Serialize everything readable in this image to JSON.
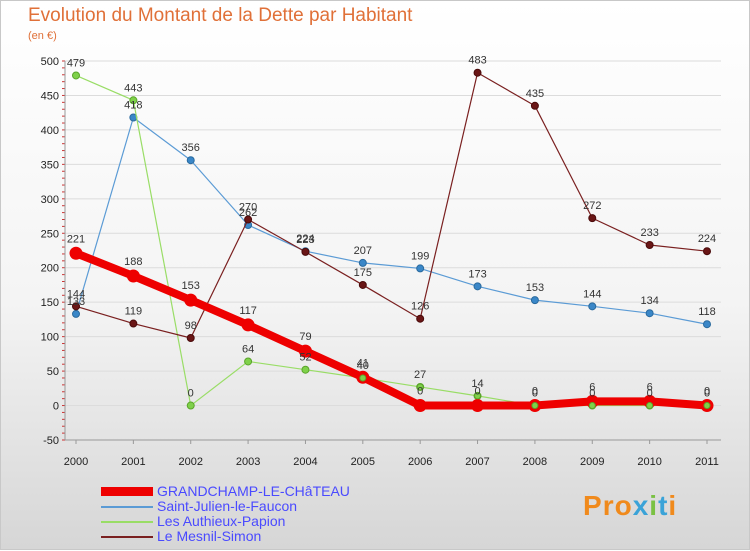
{
  "title": "Evolution du Montant de la Dette par Habitant",
  "subtitle": "(en €)",
  "logo": {
    "text": "Proxiti",
    "colors": [
      "#f08a1c",
      "#f08a1c",
      "#f08a1c",
      "#3aa3d8",
      "#7ac143",
      "#3aa3d8",
      "#f08a1c"
    ]
  },
  "chart_data": {
    "type": "line",
    "title": "Evolution du Montant de la Dette par Habitant",
    "ylabel": "(en €)",
    "xlabel": "",
    "categories": [
      "2000",
      "2001",
      "2002",
      "2003",
      "2004",
      "2005",
      "2006",
      "2007",
      "2008",
      "2009",
      "2010",
      "2011"
    ],
    "ylim": [
      -50,
      500
    ],
    "yticks": [
      -50,
      0,
      50,
      100,
      150,
      200,
      250,
      300,
      350,
      400,
      450,
      500
    ],
    "series": [
      {
        "name": "Saint-Julien-le-Faucon",
        "color": "#5b9bd5",
        "values": [
          133,
          418,
          356,
          262,
          224,
          207,
          199,
          173,
          153,
          144,
          134,
          118
        ]
      },
      {
        "name": "Les Authieux-Papion",
        "color": "#99dd66",
        "values": [
          479,
          443,
          0,
          64,
          52,
          40,
          27,
          14,
          0,
          0,
          0,
          0
        ]
      },
      {
        "name": "Le Mesnil-Simon",
        "color": "#7a2020",
        "values": [
          144,
          119,
          98,
          270,
          223,
          175,
          126,
          483,
          435,
          272,
          233,
          224
        ]
      },
      {
        "name": "GRANDCHAMP-LE-CHâTEAU",
        "color": "#ee0000",
        "values": [
          221,
          188,
          153,
          117,
          79,
          41,
          0,
          0,
          0,
          6,
          6,
          0
        ]
      }
    ],
    "legend_order": [
      "GRANDCHAMP-LE-CHâTEAU",
      "Saint-Julien-le-Faucon",
      "Les Authieux-Papion",
      "Le Mesnil-Simon"
    ]
  }
}
